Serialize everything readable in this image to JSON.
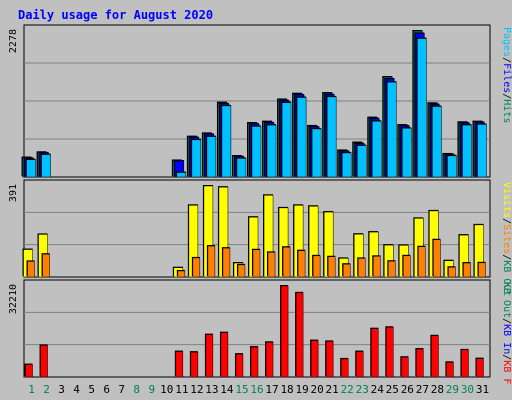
{
  "title": "Daily usage for August 2020",
  "colors": {
    "background": "#c0c0c0",
    "panel_bg": "#ffffff",
    "grid": "#808080",
    "hits": "#00805c",
    "files": "#0000ff",
    "pages": "#00c0ff",
    "visits": "#ffff00",
    "sites": "#ff8000",
    "kbin": "#0000ff",
    "kbout": "#00805c",
    "kbf": "#ff0000",
    "title": "#0000ff",
    "weekend": "#00805c",
    "weekday": "#000000"
  },
  "days": [
    "1",
    "2",
    "3",
    "4",
    "5",
    "6",
    "7",
    "8",
    "9",
    "10",
    "11",
    "12",
    "13",
    "14",
    "15",
    "16",
    "17",
    "18",
    "19",
    "20",
    "21",
    "22",
    "23",
    "24",
    "25",
    "26",
    "27",
    "28",
    "29",
    "30",
    "31"
  ],
  "weekend_days": [
    1,
    2,
    8,
    9,
    15,
    16,
    22,
    23,
    29,
    30
  ],
  "chart_data": [
    {
      "type": "bar",
      "panel": "top",
      "ymax_label": "2278",
      "ymax": 2278,
      "legend": [
        "Pages",
        "/",
        "Files",
        "/",
        "Hits"
      ],
      "series": [
        {
          "name": "Hits",
          "values": [
            304,
            386,
            0,
            0,
            0,
            0,
            0,
            0,
            0,
            0,
            258,
            630,
            681,
            1160,
            327,
            842,
            864,
            1210,
            1300,
            797,
            1310,
            415,
            538,
            927,
            1560,
            810,
            2278,
            1150,
            360,
            854,
            864
          ]
        },
        {
          "name": "Files",
          "values": [
            290,
            375,
            0,
            0,
            0,
            0,
            0,
            0,
            0,
            0,
            250,
            615,
            665,
            1140,
            315,
            825,
            845,
            1190,
            1280,
            780,
            1285,
            400,
            520,
            910,
            1530,
            795,
            2240,
            1130,
            350,
            840,
            850
          ]
        },
        {
          "name": "Pages",
          "values": [
            270,
            350,
            0,
            0,
            0,
            0,
            0,
            0,
            0,
            0,
            70,
            580,
            630,
            1110,
            290,
            790,
            810,
            1160,
            1240,
            750,
            1250,
            375,
            490,
            870,
            1480,
            760,
            2160,
            1100,
            330,
            810,
            820
          ]
        }
      ]
    },
    {
      "type": "bar",
      "panel": "middle",
      "ymax_label": "391",
      "ymax": 391,
      "legend": [
        "Visits",
        "/",
        "Sites",
        "/",
        "KB Out"
      ],
      "series": [
        {
          "name": "Visits",
          "values": [
            118,
            183,
            0,
            0,
            0,
            0,
            0,
            0,
            0,
            0,
            40,
            308,
            391,
            386,
            60,
            257,
            351,
            297,
            308,
            304,
            279,
            80,
            184,
            193,
            137,
            136,
            252,
            284,
            70,
            180,
            224
          ]
        },
        {
          "name": "Sites",
          "values": [
            67,
            98,
            0,
            0,
            0,
            0,
            0,
            0,
            0,
            0,
            26,
            82,
            133,
            124,
            52,
            117,
            106,
            128,
            113,
            91,
            87,
            55,
            80,
            89,
            68,
            91,
            130,
            160,
            42,
            60,
            61
          ]
        }
      ]
    },
    {
      "type": "bar",
      "panel": "bottom",
      "ymax_label": "32210",
      "ymax": 32210,
      "legend": [
        "KB Out",
        "/",
        "KB In",
        "/",
        "KB F"
      ],
      "series": [
        {
          "name": "KB F",
          "values": [
            4400,
            11200,
            0,
            0,
            0,
            0,
            0,
            0,
            0,
            0,
            9000,
            8800,
            15000,
            15700,
            8100,
            10600,
            12300,
            32210,
            29800,
            12900,
            12600,
            6400,
            9000,
            17100,
            17600,
            7000,
            9900,
            14600,
            5200,
            9600,
            6500
          ]
        }
      ]
    }
  ]
}
